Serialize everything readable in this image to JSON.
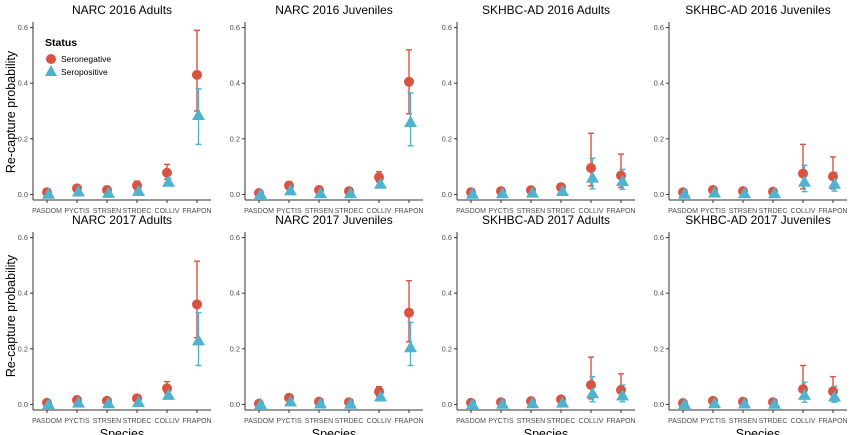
{
  "chart_data": {
    "type": "scatter",
    "xlabel": "Species",
    "ylabel": "Re-capture probability",
    "legend": {
      "title": "Status",
      "placement": "top-left of first panel"
    },
    "colors": {
      "Seronegative": "#d95340",
      "Seropositive": "#4fb3d0"
    },
    "categories": [
      "PASDOM",
      "PYCTIS",
      "STRSEN",
      "STRDEC",
      "COLLIV",
      "FRAPON"
    ],
    "y_ticks": [
      "0.0",
      "0.2",
      "0.4",
      "0.6"
    ],
    "ylim": [
      -0.02,
      0.62
    ],
    "panels": [
      {
        "title": "NARC 2016 Adults",
        "series": [
          {
            "name": "Seronegative",
            "values": [
              0.008,
              0.022,
              0.016,
              0.032,
              0.078,
              0.43
            ],
            "lower": [
              0.0,
              0.012,
              0.008,
              0.012,
              0.055,
              0.3
            ],
            "upper": [
              0.016,
              0.032,
              0.024,
              0.048,
              0.108,
              0.59
            ]
          },
          {
            "name": "Seropositive",
            "values": [
              0.002,
              0.01,
              0.005,
              0.012,
              0.045,
              0.285
            ],
            "lower": [
              0.0,
              0.0,
              0.0,
              0.002,
              0.032,
              0.18
            ],
            "upper": [
              0.008,
              0.018,
              0.012,
              0.022,
              0.058,
              0.38
            ]
          }
        ]
      },
      {
        "title": "NARC 2016 Juveniles",
        "series": [
          {
            "name": "Seronegative",
            "values": [
              0.005,
              0.032,
              0.016,
              0.012,
              0.062,
              0.405
            ],
            "lower": [
              0.0,
              0.018,
              0.008,
              0.004,
              0.045,
              0.29
            ],
            "upper": [
              0.012,
              0.045,
              0.024,
              0.022,
              0.082,
              0.52
            ]
          },
          {
            "name": "Seropositive",
            "values": [
              0.001,
              0.014,
              0.004,
              0.004,
              0.038,
              0.26
            ],
            "lower": [
              0.0,
              0.004,
              0.0,
              0.0,
              0.025,
              0.175
            ],
            "upper": [
              0.006,
              0.024,
              0.01,
              0.01,
              0.052,
              0.365
            ]
          }
        ]
      },
      {
        "title": "SKHBC-AD 2016 Adults",
        "series": [
          {
            "name": "Seronegative",
            "values": [
              0.008,
              0.012,
              0.015,
              0.026,
              0.095,
              0.068
            ],
            "lower": [
              0.0,
              0.004,
              0.006,
              0.014,
              0.03,
              0.025
            ],
            "upper": [
              0.016,
              0.022,
              0.024,
              0.038,
              0.22,
              0.145
            ]
          },
          {
            "name": "Seropositive",
            "values": [
              0.002,
              0.004,
              0.006,
              0.012,
              0.06,
              0.048
            ],
            "lower": [
              0.0,
              0.0,
              0.0,
              0.002,
              0.02,
              0.018
            ],
            "upper": [
              0.008,
              0.01,
              0.014,
              0.022,
              0.13,
              0.09
            ]
          }
        ]
      },
      {
        "title": "SKHBC-AD 2016 Juveniles",
        "series": [
          {
            "name": "Seronegative",
            "values": [
              0.008,
              0.016,
              0.012,
              0.01,
              0.075,
              0.065
            ],
            "lower": [
              0.0,
              0.006,
              0.004,
              0.002,
              0.02,
              0.02
            ],
            "upper": [
              0.016,
              0.026,
              0.022,
              0.018,
              0.18,
              0.135
            ]
          },
          {
            "name": "Seropositive",
            "values": [
              0.002,
              0.006,
              0.004,
              0.004,
              0.045,
              0.038
            ],
            "lower": [
              0.0,
              0.0,
              0.0,
              0.0,
              0.01,
              0.012
            ],
            "upper": [
              0.008,
              0.014,
              0.01,
              0.01,
              0.105,
              0.08
            ]
          }
        ]
      },
      {
        "title": "NARC 2017 Adults",
        "series": [
          {
            "name": "Seronegative",
            "values": [
              0.006,
              0.016,
              0.013,
              0.022,
              0.058,
              0.36
            ],
            "lower": [
              0.0,
              0.008,
              0.005,
              0.012,
              0.04,
              0.24
            ],
            "upper": [
              0.014,
              0.026,
              0.022,
              0.034,
              0.082,
              0.515
            ]
          },
          {
            "name": "Seropositive",
            "values": [
              0.001,
              0.006,
              0.004,
              0.008,
              0.034,
              0.23
            ],
            "lower": [
              0.0,
              0.0,
              0.0,
              0.0,
              0.022,
              0.14
            ],
            "upper": [
              0.006,
              0.012,
              0.01,
              0.016,
              0.048,
              0.33
            ]
          }
        ]
      },
      {
        "title": "NARC 2017 Juveniles",
        "series": [
          {
            "name": "Seronegative",
            "values": [
              0.003,
              0.024,
              0.01,
              0.008,
              0.046,
              0.33
            ],
            "lower": [
              0.0,
              0.012,
              0.004,
              0.002,
              0.03,
              0.225
            ],
            "upper": [
              0.01,
              0.036,
              0.018,
              0.016,
              0.064,
              0.445
            ]
          },
          {
            "name": "Seropositive",
            "values": [
              0.001,
              0.01,
              0.003,
              0.002,
              0.028,
              0.205
            ],
            "lower": [
              0.0,
              0.002,
              0.0,
              0.0,
              0.016,
              0.14
            ],
            "upper": [
              0.004,
              0.018,
              0.008,
              0.008,
              0.04,
              0.295
            ]
          }
        ]
      },
      {
        "title": "SKHBC-AD 2017 Adults",
        "series": [
          {
            "name": "Seronegative",
            "values": [
              0.006,
              0.008,
              0.012,
              0.018,
              0.07,
              0.052
            ],
            "lower": [
              0.0,
              0.002,
              0.004,
              0.008,
              0.02,
              0.018
            ],
            "upper": [
              0.014,
              0.016,
              0.02,
              0.03,
              0.17,
              0.11
            ]
          },
          {
            "name": "Seropositive",
            "values": [
              0.001,
              0.002,
              0.004,
              0.006,
              0.04,
              0.032
            ],
            "lower": [
              0.0,
              0.0,
              0.0,
              0.0,
              0.01,
              0.01
            ],
            "upper": [
              0.006,
              0.008,
              0.01,
              0.014,
              0.1,
              0.07
            ]
          }
        ]
      },
      {
        "title": "SKHBC-AD 2017 Juveniles",
        "series": [
          {
            "name": "Seronegative",
            "values": [
              0.005,
              0.013,
              0.01,
              0.008,
              0.055,
              0.047
            ],
            "lower": [
              0.0,
              0.005,
              0.003,
              0.002,
              0.02,
              0.015
            ],
            "upper": [
              0.012,
              0.022,
              0.018,
              0.016,
              0.14,
              0.1
            ]
          },
          {
            "name": "Seropositive",
            "values": [
              0.001,
              0.004,
              0.003,
              0.002,
              0.034,
              0.028
            ],
            "lower": [
              0.0,
              0.0,
              0.0,
              0.0,
              0.008,
              0.008
            ],
            "upper": [
              0.006,
              0.01,
              0.008,
              0.008,
              0.08,
              0.065
            ]
          }
        ]
      }
    ]
  }
}
